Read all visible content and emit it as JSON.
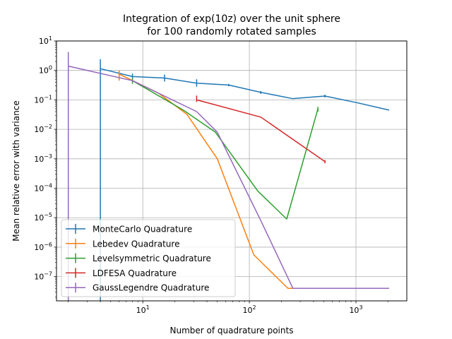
{
  "chart_data": {
    "type": "line",
    "title": [
      "Integration of exp(10z) over the unit sphere",
      "for 100 randomly rotated samples"
    ],
    "xlabel": "Number of quadrature points",
    "ylabel": "Mean relative error with variance",
    "x_scale": "log",
    "y_scale": "log",
    "xlim": [
      1.55,
      3000
    ],
    "ylim": [
      1.5e-08,
      10
    ],
    "grid": true,
    "legend_position": "lower-left",
    "x_ticks": [
      {
        "value": 10,
        "base": "10",
        "exp": "1"
      },
      {
        "value": 100,
        "base": "10",
        "exp": "2"
      },
      {
        "value": 1000,
        "base": "10",
        "exp": "3"
      }
    ],
    "y_ticks": [
      {
        "value": 10,
        "base": "10",
        "exp": "1"
      },
      {
        "value": 1,
        "base": "10",
        "exp": "0"
      },
      {
        "value": 0.1,
        "base": "10",
        "exp": "−1"
      },
      {
        "value": 0.01,
        "base": "10",
        "exp": "−2"
      },
      {
        "value": 0.001,
        "base": "10",
        "exp": "−3"
      },
      {
        "value": 0.0001,
        "base": "10",
        "exp": "−4"
      },
      {
        "value": 1e-05,
        "base": "10",
        "exp": "−5"
      },
      {
        "value": 1e-06,
        "base": "10",
        "exp": "−6"
      },
      {
        "value": 1e-07,
        "base": "10",
        "exp": "−7"
      }
    ],
    "series": [
      {
        "name": "MonteCarlo Quadrature",
        "color": "#1f77b4",
        "x": [
          4,
          8,
          16,
          32,
          64,
          128,
          256,
          512,
          1024,
          2048
        ],
        "y": [
          1.15,
          0.62,
          0.55,
          0.37,
          0.32,
          0.18,
          0.11,
          0.135,
          0.08,
          0.045
        ],
        "err_low": [
          1e-09,
          0.52,
          0.42,
          0.28,
          0.29,
          0.16,
          0.11,
          0.12,
          0.08,
          0.045
        ],
        "err_high": [
          2.4,
          0.78,
          0.72,
          0.5,
          0.35,
          0.2,
          0.11,
          0.15,
          0.08,
          0.045
        ]
      },
      {
        "name": "Lebedev Quadrature",
        "color": "#ff7f0e",
        "x": [
          6,
          14,
          26,
          50,
          110,
          230,
          500,
          2000
        ],
        "y": [
          0.75,
          0.17,
          0.032,
          0.001,
          5.5e-07,
          4e-08,
          4e-08,
          4e-08
        ],
        "err_low": [
          0.45,
          0.17,
          0.032,
          0.001,
          5.5e-07,
          4e-08,
          4e-08,
          4e-08
        ],
        "err_high": [
          1.0,
          0.17,
          0.032,
          0.001,
          5.5e-07,
          4e-08,
          4e-08,
          4e-08
        ]
      },
      {
        "name": "Levelsymmetric Quadrature",
        "color": "#2ca02c",
        "x": [
          8,
          24,
          48,
          120,
          224,
          440
        ],
        "y": [
          0.45,
          0.045,
          0.008,
          8e-05,
          9e-06,
          0.05
        ],
        "err_low": [
          0.35,
          0.045,
          0.008,
          8e-05,
          9e-06,
          0.04
        ],
        "err_high": [
          0.55,
          0.045,
          0.008,
          8e-05,
          9e-06,
          0.058
        ]
      },
      {
        "name": "LDFESA Quadrature",
        "color": "#d62728",
        "x": [
          32,
          128,
          512
        ],
        "y": [
          0.1,
          0.026,
          0.0008
        ],
        "err_low": [
          0.085,
          0.026,
          0.0007
        ],
        "err_high": [
          0.14,
          0.026,
          0.0009
        ]
      },
      {
        "name": "GaussLegendre Quadrature",
        "color": "#9467bd",
        "x": [
          2,
          8,
          32,
          50,
          128,
          256,
          512,
          2048
        ],
        "y": [
          1.4,
          0.45,
          0.04,
          0.008,
          8e-06,
          4e-08,
          4e-08,
          4e-08
        ],
        "err_low": [
          1e-09,
          0.45,
          0.04,
          0.008,
          8e-06,
          4e-08,
          4e-08,
          4e-08
        ],
        "err_high": [
          4.2,
          0.45,
          0.04,
          0.008,
          8e-06,
          4e-08,
          4e-08,
          4e-08
        ]
      }
    ]
  }
}
